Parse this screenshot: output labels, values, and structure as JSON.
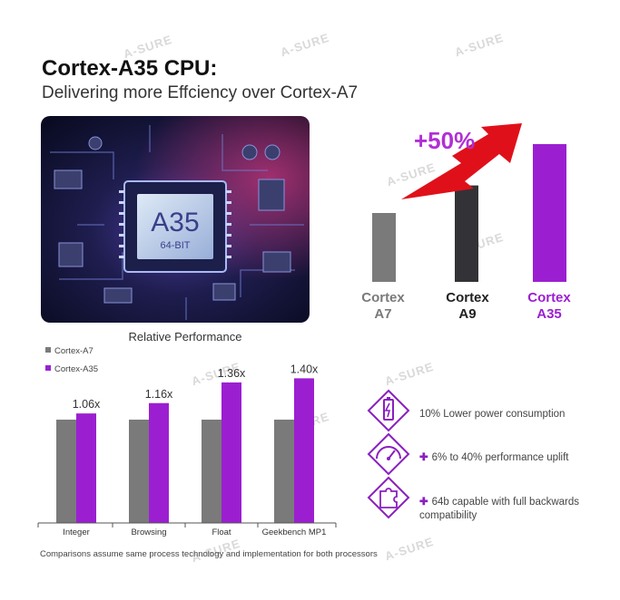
{
  "header": {
    "title": "Cortex-A35 CPU:",
    "subtitle": "Delivering more Effciency over Cortex-A7"
  },
  "chip_image": {
    "label": "A35",
    "sublabel": "64-BIT"
  },
  "watermark_text": "A-SURE",
  "colors": {
    "a7": "#7a7a7a",
    "a9": "#333337",
    "a35": "#9b1fd1",
    "arrow": "#e0101a",
    "plus_text": "#b12fd6"
  },
  "chart_data": [
    {
      "type": "bar",
      "categories": [
        "Cortex A7",
        "Cortex A9",
        "Cortex A35"
      ],
      "values": [
        1.0,
        1.4,
        2.0
      ],
      "annotation": "+50%",
      "labels": [
        {
          "line1": "Cortex",
          "line2": "A7"
        },
        {
          "line1": "Cortex",
          "line2": "A9"
        },
        {
          "line1": "Cortex",
          "line2": "A35"
        }
      ]
    },
    {
      "type": "bar",
      "title": "Relative Performance",
      "categories": [
        "Integer",
        "Browsing",
        "Float",
        "Geekbench MP1"
      ],
      "series": [
        {
          "name": "Cortex-A7",
          "values": [
            1.0,
            1.0,
            1.0,
            1.0
          ]
        },
        {
          "name": "Cortex-A35",
          "values": [
            1.06,
            1.16,
            1.36,
            1.4
          ]
        }
      ],
      "data_labels": [
        "1.06x",
        "1.16x",
        "1.36x",
        "1.40x"
      ],
      "ylim": [
        0,
        1.5
      ]
    }
  ],
  "features": [
    {
      "icon": "battery-icon",
      "text": "10% Lower power consumption",
      "plus": false
    },
    {
      "icon": "speedometer-icon",
      "text": "6% to 40% performance uplift",
      "plus": true
    },
    {
      "icon": "puzzle-icon",
      "text": "64b capable with full backwards compatibility",
      "plus": true
    }
  ],
  "footnote": "Comparisons assume same process technology and implementation for both processors"
}
